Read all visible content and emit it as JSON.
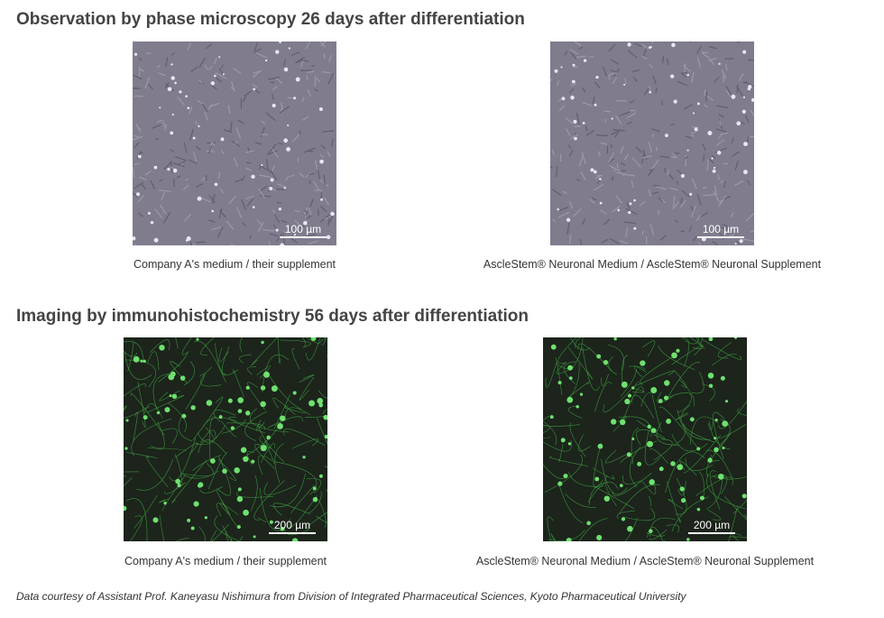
{
  "sections": [
    {
      "title": "Observation by phase microscopy 26 days after differentiation",
      "panels": [
        {
          "scale_bar": "100 µm",
          "caption": "Company A's medium / their supplement"
        },
        {
          "scale_bar": "100 µm",
          "caption": "AscleStem® Neuronal Medium / AscleStem® Neuronal Supplement"
        }
      ]
    },
    {
      "title": "Imaging by immunohistochemistry 56 days after differentiation",
      "panels": [
        {
          "scale_bar": "200 µm",
          "caption": "Company A's medium / their supplement"
        },
        {
          "scale_bar": "200 µm",
          "caption": "AscleStem® Neuronal Medium / AscleStem® Neuronal Supplement"
        }
      ]
    }
  ],
  "footer": "Data courtesy of Assistant Prof. Kaneyasu Nishimura from Division of Integrated Pharmaceutical Sciences, Kyoto Pharmaceutical University"
}
